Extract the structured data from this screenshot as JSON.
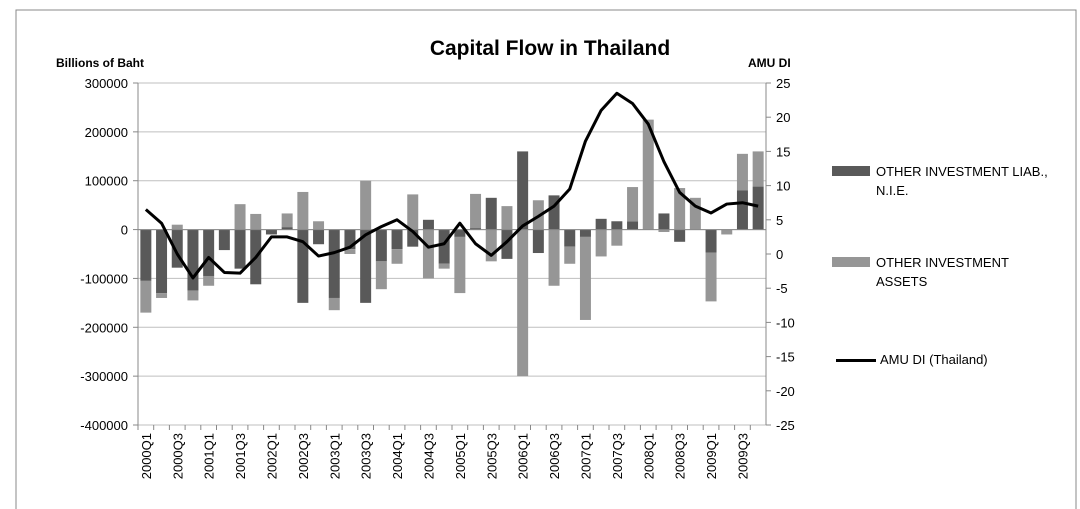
{
  "chart_data": {
    "type": "bar_line",
    "title": "Capital Flow in Thailand",
    "ylabel": "Billions of Baht",
    "y2label": "AMU DI",
    "categories": [
      "2000Q1",
      null,
      "2000Q3",
      null,
      "2001Q1",
      null,
      "2001Q3",
      null,
      "2002Q1",
      null,
      "2002Q3",
      null,
      "2003Q1",
      null,
      "2003Q3",
      null,
      "2004Q1",
      null,
      "2004Q3",
      null,
      "2005Q1",
      null,
      "2005Q3",
      null,
      "2006Q1",
      null,
      "2006Q3",
      null,
      "2007Q1",
      null,
      "2007Q3",
      null,
      "2008Q1",
      null,
      "2008Q3",
      null,
      "2009Q1",
      null,
      "2009Q3",
      null
    ],
    "series": [
      {
        "name": "OTHER INVESTMENT LIAB., N.I.E.",
        "type": "bar",
        "color": "#595959",
        "values": [
          -105000,
          -130000,
          -78000,
          -125000,
          -95000,
          -42000,
          -80000,
          -112000,
          -10000,
          5000,
          -150000,
          -30000,
          -140000,
          -40000,
          -150000,
          -65000,
          -40000,
          -35000,
          20000,
          -70000,
          -15000,
          3000,
          65000,
          -60000,
          160000,
          -48000,
          70000,
          -35000,
          -15000,
          22000,
          17000,
          17000,
          0,
          33000,
          -25000,
          0,
          -47000,
          0,
          80000,
          88000
        ]
      },
      {
        "name": "OTHER INVESTMENT ASSETS",
        "type": "bar",
        "color": "#969696",
        "values": [
          -65000,
          -10000,
          10000,
          -20000,
          -20000,
          0,
          52000,
          32000,
          0,
          28000,
          77000,
          17000,
          -25000,
          -10000,
          100000,
          -57000,
          -30000,
          72000,
          -100000,
          -10000,
          -115000,
          70000,
          -65000,
          48000,
          -300000,
          60000,
          -115000,
          -35000,
          -170000,
          -55000,
          -33000,
          70000,
          225000,
          -5000,
          85000,
          65000,
          -100000,
          -10000,
          75000,
          72000
        ]
      },
      {
        "name": "AMU DI (Thailand)",
        "type": "line",
        "axis": "y2",
        "color": "#000000",
        "values": [
          6.5,
          4.5,
          0,
          -3.5,
          -0.5,
          -2.7,
          -2.8,
          -0.5,
          2.5,
          2.5,
          1.8,
          -0.3,
          0.2,
          1,
          2.8,
          4,
          5,
          3.3,
          1,
          1.5,
          4.5,
          1.5,
          -0.2,
          1.8,
          4.1,
          5.5,
          7,
          9.5,
          16.5,
          21,
          23.5,
          22,
          19,
          13.5,
          9,
          7,
          6,
          7.3,
          7.5,
          7
        ]
      }
    ],
    "ylim": [
      -400000,
      300000
    ],
    "yticks": [
      -400000,
      -300000,
      -200000,
      -100000,
      0,
      100000,
      200000,
      300000
    ],
    "y2lim": [
      -25,
      25
    ],
    "y2ticks": [
      -25,
      -20,
      -15,
      -10,
      -5,
      0,
      5,
      10,
      15,
      20,
      25
    ],
    "grid": true,
    "legend": "right"
  }
}
